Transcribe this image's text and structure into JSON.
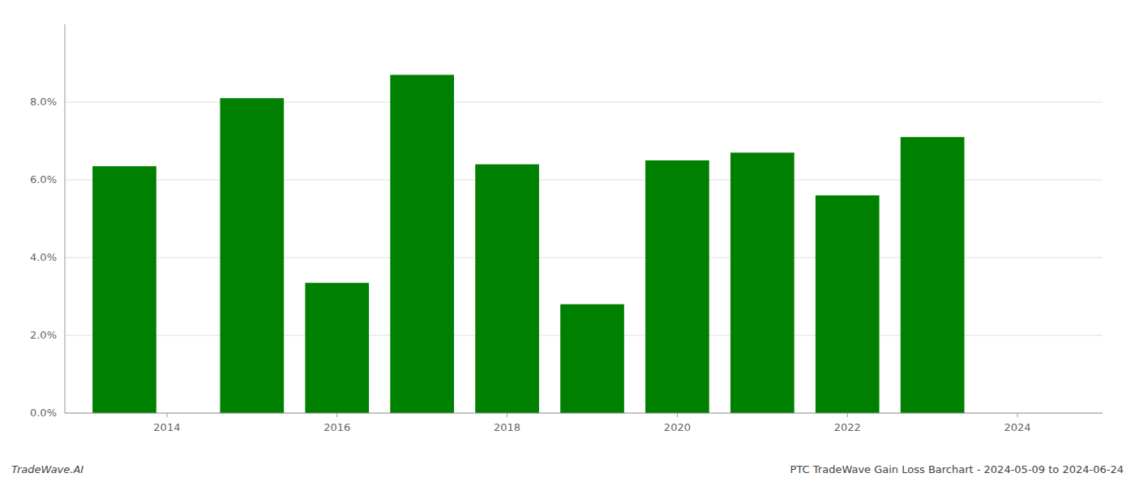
{
  "chart_data": {
    "type": "bar",
    "title": "PTC TradeWave Gain Loss Barchart - 2024-05-09 to 2024-06-24",
    "annotations": [
      "TradeWave.AI"
    ],
    "x": [
      2013.5,
      2015,
      2016,
      2017,
      2018,
      2019,
      2020,
      2021,
      2022,
      2023
    ],
    "values": [
      0.0635,
      0.081,
      0.0335,
      0.087,
      0.064,
      0.028,
      0.065,
      0.067,
      0.056,
      0.071
    ],
    "color": "#008000",
    "xlim": [
      2012.8,
      2025.0
    ],
    "xticks": [
      2014,
      2016,
      2018,
      2020,
      2022,
      2024
    ],
    "ylim": [
      0,
      0.1
    ],
    "yticks": [
      {
        "value": 0.0,
        "label": "0.0%"
      },
      {
        "value": 0.02,
        "label": "2.0%"
      },
      {
        "value": 0.04,
        "label": "4.0%"
      },
      {
        "value": 0.06,
        "label": "6.0%"
      },
      {
        "value": 0.08,
        "label": "8.0%"
      }
    ],
    "grid": true
  }
}
